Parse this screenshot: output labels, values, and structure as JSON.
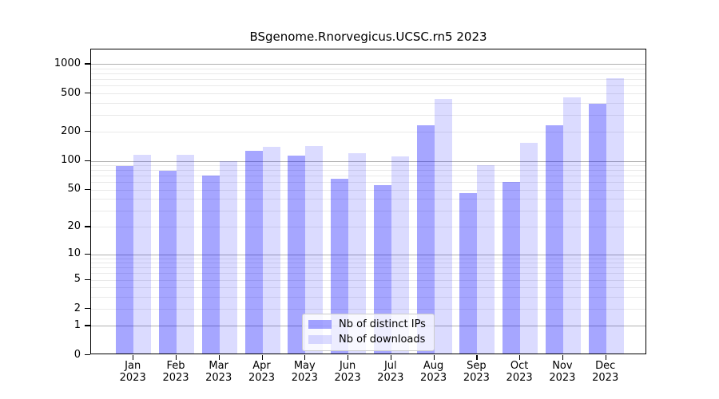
{
  "title": "BSgenome.Rnorvegicus.UCSC.rn5 2023",
  "chart_data": {
    "type": "bar",
    "title": "BSgenome.Rnorvegicus.UCSC.rn5 2023",
    "categories": [
      "Jan",
      "Feb",
      "Mar",
      "Apr",
      "May",
      "Jun",
      "Jul",
      "Aug",
      "Sep",
      "Oct",
      "Nov",
      "Dec"
    ],
    "year": "2023",
    "series": [
      {
        "name": "Nb of distinct IPs",
        "color": "rgba(0,0,255,0.35)",
        "values": [
          85,
          76,
          68,
          122,
          109,
          62,
          54,
          225,
          44,
          58,
          225,
          378
        ]
      },
      {
        "name": "Nb of downloads",
        "color": "rgba(0,0,255,0.14)",
        "values": [
          112,
          111,
          96,
          135,
          137,
          116,
          108,
          420,
          87,
          149,
          438,
          686
        ]
      }
    ],
    "xlabel": "",
    "ylabel": "",
    "yscale": "log1p",
    "ylim": [
      0,
      1418
    ],
    "yticks": [
      0,
      1,
      2,
      5,
      10,
      20,
      50,
      100,
      200,
      500,
      1000
    ],
    "major_gridlines": [
      1,
      10,
      100,
      1000
    ],
    "grid": true,
    "legend_position": "bottom-center"
  },
  "colors": {
    "axis": "#000000",
    "major_grid": "#b0b0b0",
    "minor_grid": "#e9e9e9",
    "legend_border": "#cccccc"
  }
}
